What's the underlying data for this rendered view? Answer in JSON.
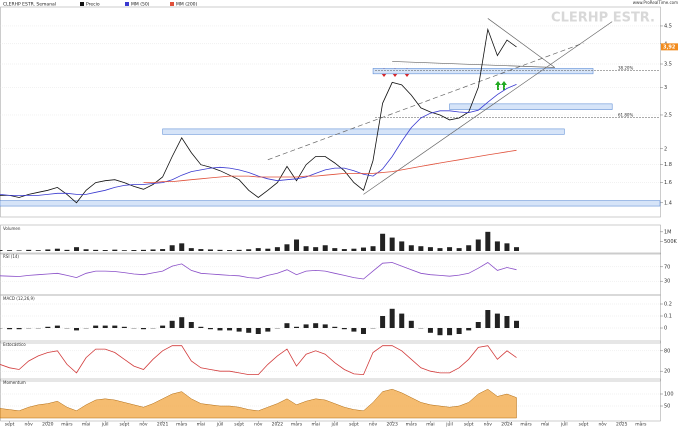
{
  "chart_data": [
    {
      "type": "line",
      "title": "CLERHP ESTR. Semanal",
      "watermark": "CLERHP ESTR.",
      "source": "www.ProRealTime.com",
      "yscale": "log",
      "grid": true,
      "x": [
        "2019-08",
        "2019-09",
        "2019-10",
        "2019-11",
        "2019-12",
        "2020-01",
        "2020-02",
        "2020-03",
        "2020-04",
        "2020-05",
        "2020-06",
        "2020-07",
        "2020-08",
        "2020-09",
        "2020-10",
        "2020-11",
        "2020-12",
        "2021-01",
        "2021-02",
        "2021-03",
        "2021-04",
        "2021-05",
        "2021-06",
        "2021-07",
        "2021-08",
        "2021-09",
        "2021-10",
        "2021-11",
        "2021-12",
        "2022-01",
        "2022-02",
        "2022-03",
        "2022-04",
        "2022-05",
        "2022-06",
        "2022-07",
        "2022-08",
        "2022-09",
        "2022-10",
        "2022-11",
        "2022-12",
        "2023-01",
        "2023-02",
        "2023-03",
        "2023-04",
        "2023-05",
        "2023-06",
        "2023-07",
        "2023-08",
        "2023-09",
        "2023-10",
        "2023-11",
        "2023-12",
        "2024-01",
        "2024-02"
      ],
      "xlim": [
        "2019-08",
        "2025-05"
      ],
      "ylim": [
        1.3,
        5
      ],
      "yticks": [
        1.4,
        1.6,
        1.8,
        2,
        2.5,
        3,
        3.5,
        4,
        4.5
      ],
      "series": [
        {
          "name": "Precio",
          "color": "#111111",
          "values": [
            1.47,
            1.47,
            1.45,
            1.48,
            1.5,
            1.52,
            1.55,
            1.48,
            1.4,
            1.52,
            1.6,
            1.62,
            1.63,
            1.6,
            1.56,
            1.53,
            1.58,
            1.66,
            1.9,
            2.15,
            1.95,
            1.8,
            1.77,
            1.73,
            1.68,
            1.63,
            1.52,
            1.45,
            1.52,
            1.6,
            1.78,
            1.62,
            1.8,
            1.9,
            1.9,
            1.82,
            1.73,
            1.6,
            1.52,
            1.85,
            2.7,
            3.1,
            3.05,
            2.85,
            2.62,
            2.55,
            2.5,
            2.42,
            2.45,
            2.55,
            3.0,
            4.4,
            3.7,
            4.1,
            3.92
          ]
        },
        {
          "name": "MM (50)",
          "color": "#3a3ad0",
          "values": [
            1.48,
            1.47,
            1.47,
            1.47,
            1.47,
            1.48,
            1.49,
            1.49,
            1.48,
            1.48,
            1.5,
            1.52,
            1.55,
            1.57,
            1.58,
            1.58,
            1.59,
            1.6,
            1.63,
            1.68,
            1.72,
            1.74,
            1.76,
            1.77,
            1.76,
            1.74,
            1.71,
            1.67,
            1.64,
            1.62,
            1.63,
            1.64,
            1.66,
            1.7,
            1.74,
            1.76,
            1.76,
            1.73,
            1.69,
            1.67,
            1.75,
            1.9,
            2.1,
            2.3,
            2.45,
            2.53,
            2.57,
            2.57,
            2.55,
            2.54,
            2.58,
            2.72,
            2.86,
            2.98,
            3.06
          ]
        },
        {
          "name": "MM (200)",
          "color": "#e0503a",
          "values": [
            null,
            null,
            null,
            null,
            null,
            null,
            null,
            null,
            null,
            null,
            null,
            null,
            null,
            null,
            null,
            1.6,
            1.6,
            1.61,
            1.61,
            1.62,
            1.63,
            1.64,
            1.65,
            1.66,
            1.67,
            1.67,
            1.67,
            1.66,
            1.66,
            1.66,
            1.66,
            1.66,
            1.67,
            1.67,
            1.68,
            1.69,
            1.7,
            1.7,
            1.7,
            1.7,
            1.71,
            1.72,
            1.74,
            1.76,
            1.78,
            1.8,
            1.82,
            1.84,
            1.86,
            1.88,
            1.9,
            1.92,
            1.94,
            1.96,
            1.98
          ]
        }
      ],
      "last_value_label": "3,92",
      "zones": [
        {
          "from": "2022-11",
          "to": "2024-10",
          "low": 3.28,
          "high": 3.4
        },
        {
          "from": "2023-07",
          "to": "2024-12",
          "low": 2.59,
          "high": 2.69
        },
        {
          "from": "2021-01",
          "to": "2024-07",
          "low": 2.2,
          "high": 2.28
        },
        {
          "from": "2019-08",
          "to": "2025-05",
          "low": 1.37,
          "high": 1.42
        }
      ],
      "levels": [
        {
          "label": "38.20%",
          "value": 3.35
        },
        {
          "label": "61.80%",
          "value": 2.46
        }
      ],
      "trendlines": [
        {
          "x": [
            "2021-12",
            "2024-09"
          ],
          "y": [
            1.86,
            4.02
          ],
          "style": "dashed"
        },
        {
          "x": [
            "2022-10",
            "2024-12"
          ],
          "y": [
            1.48,
            4.63
          ],
          "style": "solid"
        },
        {
          "x": [
            "2023-01",
            "2024-06"
          ],
          "y": [
            3.56,
            3.42
          ],
          "style": "solid"
        },
        {
          "x": [
            "2023-11",
            "2024-06"
          ],
          "y": [
            4.73,
            3.42
          ],
          "style": "solid"
        }
      ]
    },
    {
      "type": "bar",
      "title": "Volumen",
      "color": "#222222",
      "xlim": [
        "2019-08",
        "2025-05"
      ],
      "ylim": [
        0,
        1200000
      ],
      "yticks": [
        {
          "value": 500000,
          "label": "500K"
        },
        {
          "value": 1000000,
          "label": "1M"
        }
      ],
      "values": [
        50000,
        40000,
        30000,
        60000,
        40000,
        80000,
        120000,
        60000,
        200000,
        90000,
        60000,
        50000,
        70000,
        40000,
        50000,
        60000,
        80000,
        100000,
        300000,
        400000,
        150000,
        100000,
        80000,
        60000,
        50000,
        60000,
        90000,
        150000,
        120000,
        200000,
        350000,
        600000,
        250000,
        200000,
        300000,
        150000,
        100000,
        120000,
        180000,
        250000,
        900000,
        700000,
        500000,
        300000,
        250000,
        200000,
        150000,
        200000,
        150000,
        300000,
        600000,
        1000000,
        500000,
        400000,
        200000
      ]
    },
    {
      "type": "line",
      "title": "RSI (14)",
      "color": "#8a4fc8",
      "xlim": [
        "2019-08",
        "2025-05"
      ],
      "ylim": [
        0,
        100
      ],
      "yticks": [
        30,
        70
      ],
      "grid": true,
      "values": [
        45,
        44,
        43,
        46,
        48,
        50,
        52,
        46,
        40,
        52,
        58,
        58,
        57,
        54,
        50,
        48,
        53,
        58,
        72,
        78,
        60,
        52,
        50,
        48,
        46,
        45,
        40,
        38,
        46,
        52,
        62,
        48,
        58,
        60,
        58,
        52,
        46,
        40,
        36,
        58,
        80,
        82,
        72,
        62,
        52,
        48,
        46,
        44,
        47,
        52,
        66,
        82,
        60,
        68,
        62
      ]
    },
    {
      "type": "bar",
      "title": "MACD (12,26,9)",
      "color": "#222222",
      "xlim": [
        "2019-08",
        "2025-05"
      ],
      "ylim": [
        -0.1,
        0.25
      ],
      "yticks": [
        0,
        0.1,
        0.2
      ],
      "grid": true,
      "values": [
        0,
        -0.01,
        -0.01,
        0,
        0,
        0.01,
        0.02,
        0,
        -0.02,
        0,
        0.02,
        0.02,
        0.02,
        0.01,
        0,
        -0.01,
        0,
        0.02,
        0.06,
        0.09,
        0.05,
        0.01,
        -0.01,
        -0.02,
        -0.02,
        -0.03,
        -0.04,
        -0.05,
        -0.03,
        0,
        0.04,
        0.01,
        0.03,
        0.04,
        0.03,
        0.01,
        -0.01,
        -0.03,
        -0.05,
        0,
        0.1,
        0.16,
        0.12,
        0.06,
        0,
        -0.04,
        -0.06,
        -0.06,
        -0.05,
        -0.02,
        0.05,
        0.15,
        0.12,
        0.1,
        0.06
      ]
    },
    {
      "type": "line",
      "title": "Estocástico",
      "color": "#d23c3c",
      "xlim": [
        "2019-08",
        "2025-05"
      ],
      "ylim": [
        0,
        100
      ],
      "yticks": [
        20,
        80
      ],
      "grid": true,
      "values": [
        40,
        30,
        25,
        50,
        65,
        75,
        80,
        40,
        15,
        60,
        85,
        85,
        75,
        55,
        35,
        25,
        55,
        80,
        95,
        95,
        50,
        30,
        25,
        20,
        20,
        15,
        10,
        10,
        40,
        65,
        85,
        35,
        70,
        80,
        70,
        45,
        25,
        12,
        10,
        75,
        95,
        95,
        80,
        55,
        30,
        20,
        15,
        15,
        30,
        55,
        90,
        95,
        55,
        80,
        60
      ]
    },
    {
      "type": "area",
      "title": "Momentum",
      "color": "#f2a640",
      "xlim": [
        "2019-08",
        "2025-05"
      ],
      "ylim": [
        0,
        150
      ],
      "yticks": [
        50,
        100
      ],
      "grid": true,
      "values": [
        40,
        35,
        30,
        45,
        55,
        60,
        70,
        45,
        30,
        55,
        75,
        80,
        75,
        65,
        55,
        45,
        60,
        80,
        100,
        110,
        80,
        60,
        55,
        50,
        50,
        45,
        35,
        30,
        45,
        60,
        80,
        55,
        70,
        80,
        75,
        60,
        45,
        35,
        30,
        65,
        110,
        120,
        105,
        85,
        65,
        55,
        50,
        45,
        50,
        65,
        100,
        120,
        90,
        100,
        85
      ],
      "xticks": [
        {
          "value": "2019-09",
          "label": "sept"
        },
        {
          "value": "2019-11",
          "label": "nov"
        },
        {
          "value": "2020-01",
          "label": "2020"
        },
        {
          "value": "2020-03",
          "label": "mars"
        },
        {
          "value": "2020-05",
          "label": "mai"
        },
        {
          "value": "2020-07",
          "label": "juil"
        },
        {
          "value": "2020-09",
          "label": "sept"
        },
        {
          "value": "2020-11",
          "label": "nov"
        },
        {
          "value": "2021-01",
          "label": "2021"
        },
        {
          "value": "2021-03",
          "label": "mars"
        },
        {
          "value": "2021-05",
          "label": "mai"
        },
        {
          "value": "2021-07",
          "label": "juil"
        },
        {
          "value": "2021-09",
          "label": "sept"
        },
        {
          "value": "2021-11",
          "label": "nov"
        },
        {
          "value": "2022-01",
          "label": "2022"
        },
        {
          "value": "2022-03",
          "label": "mars"
        },
        {
          "value": "2022-05",
          "label": "mai"
        },
        {
          "value": "2022-07",
          "label": "juil"
        },
        {
          "value": "2022-09",
          "label": "sept"
        },
        {
          "value": "2022-11",
          "label": "nov"
        },
        {
          "value": "2023-01",
          "label": "2023"
        },
        {
          "value": "2023-03",
          "label": "mars"
        },
        {
          "value": "2023-05",
          "label": "mai"
        },
        {
          "value": "2023-07",
          "label": "juil"
        },
        {
          "value": "2023-09",
          "label": "sept"
        },
        {
          "value": "2023-11",
          "label": "nov"
        },
        {
          "value": "2024-01",
          "label": "2024"
        },
        {
          "value": "2024-03",
          "label": "mars"
        },
        {
          "value": "2024-05",
          "label": "mai"
        },
        {
          "value": "2024-07",
          "label": "juil"
        },
        {
          "value": "2024-09",
          "label": "sept"
        },
        {
          "value": "2024-11",
          "label": "nov"
        },
        {
          "value": "2025-01",
          "label": "2025"
        },
        {
          "value": "2025-03",
          "label": "mars"
        }
      ]
    }
  ]
}
